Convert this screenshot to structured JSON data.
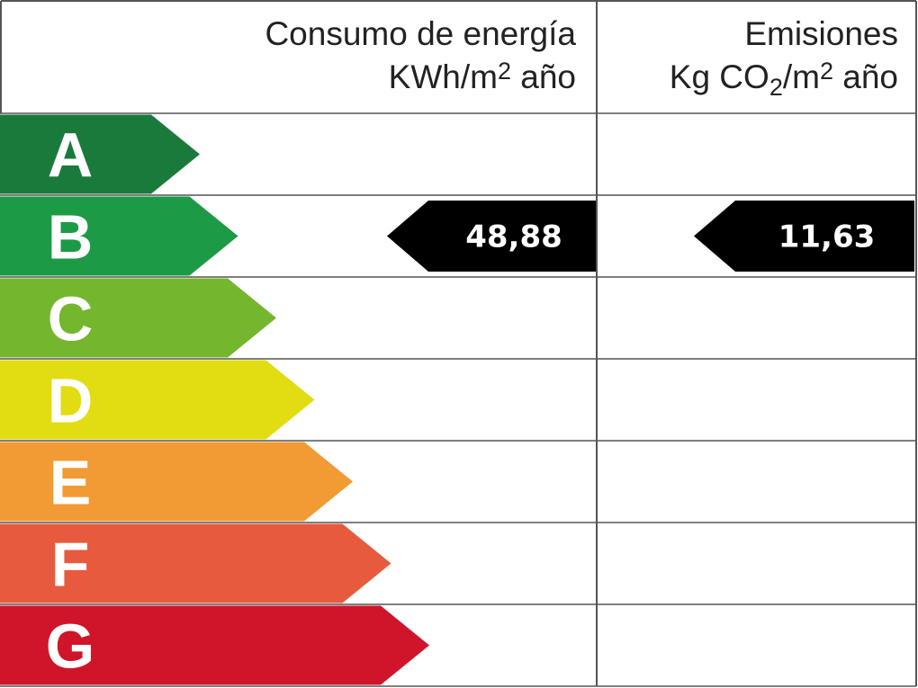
{
  "header": {
    "energy": {
      "line1": "Consumo de energía",
      "unit_pre": "KWh/m",
      "unit_exp": "2",
      "unit_post": " año"
    },
    "emissions": {
      "line1": "Emisiones",
      "unit_pre": "Kg CO",
      "unit_sub": "2",
      "unit_mid": "/m",
      "unit_exp": "2",
      "unit_post": " año"
    }
  },
  "bands": [
    {
      "letter": "A",
      "color": "#1a7a3c"
    },
    {
      "letter": "B",
      "color": "#1d9a45"
    },
    {
      "letter": "C",
      "color": "#74b62e"
    },
    {
      "letter": "D",
      "color": "#e2dc12"
    },
    {
      "letter": "E",
      "color": "#f29a33"
    },
    {
      "letter": "F",
      "color": "#e85a3e"
    },
    {
      "letter": "G",
      "color": "#d0152a"
    }
  ],
  "rating": {
    "energy": {
      "band": "B",
      "value": "48,88"
    },
    "emissions": {
      "band": "B",
      "value": "11,63"
    }
  }
}
